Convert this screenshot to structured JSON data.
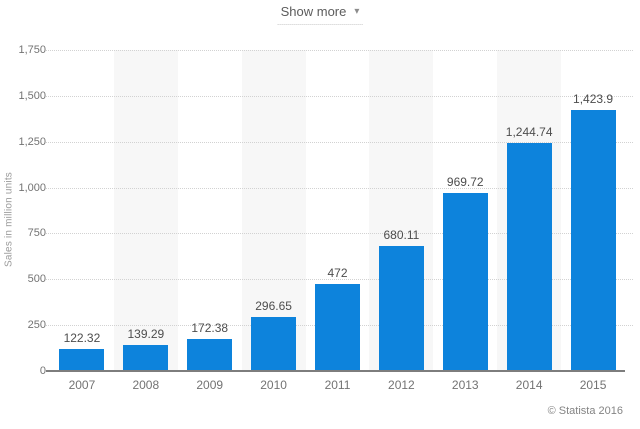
{
  "header": {
    "show_more_label": "Show more",
    "caret_icon": "▾"
  },
  "chart_data": {
    "type": "bar",
    "categories": [
      "2007",
      "2008",
      "2009",
      "2010",
      "2011",
      "2012",
      "2013",
      "2014",
      "2015"
    ],
    "values": [
      122.32,
      139.29,
      172.38,
      296.65,
      472,
      680.11,
      969.72,
      1244.74,
      1423.9
    ],
    "value_labels": [
      "122.32",
      "139.29",
      "172.38",
      "296.65",
      "472",
      "680.11",
      "969.72",
      "1,244.74",
      "1,423.9"
    ],
    "xlabel": "",
    "ylabel": "Sales in million units",
    "ylim": [
      0,
      1750
    ],
    "yticks": [
      0,
      250,
      500,
      750,
      1000,
      1250,
      1500,
      1750
    ],
    "ytick_labels": [
      "0",
      "250",
      "500",
      "750",
      "1,000",
      "1,250",
      "1,500",
      "1,750"
    ],
    "grid": "horizontal-dotted",
    "legend_position": "none",
    "banded_column_indices": [
      1,
      3,
      5,
      7
    ],
    "colors": {
      "bar": "#0d83dc",
      "column_band": "#f7f7f7",
      "gridline": "#d2d2d2",
      "axis_line": "#7d7d7d"
    }
  },
  "footer": {
    "copyright_label": "© Statista 2016"
  }
}
